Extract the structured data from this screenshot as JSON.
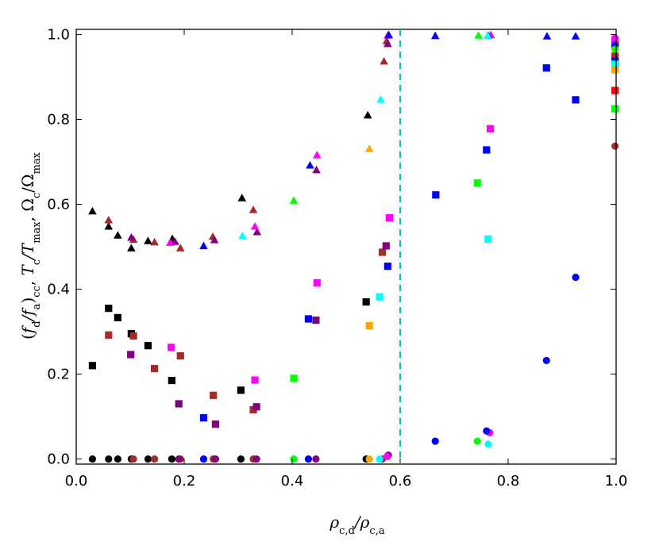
{
  "chart_data": {
    "type": "scatter",
    "title": "",
    "xlabel": "ρ_c,d/ρ_c,a",
    "ylabel": "(f_d/f_a)_cc,  T_c/T_max,  Ω_c/Ω_max",
    "xlim": [
      0.0,
      1.0
    ],
    "ylim": [
      0.0,
      1.0
    ],
    "xticks": [
      "0.0",
      "0.2",
      "0.4",
      "0.6",
      "0.8",
      "1.0"
    ],
    "yticks": [
      "0.0",
      "0.2",
      "0.4",
      "0.6",
      "0.8",
      "1.0"
    ],
    "vline": {
      "x": 0.6,
      "color": "#00bcbc",
      "style": "dashed"
    },
    "marker_meaning": {
      "circle": "(f_d/f_a)_cc",
      "square": "T_c/T_max",
      "triangle": "Ω_c/Ω_max"
    },
    "series": [
      {
        "name": "black",
        "color": "#000000",
        "marker": "triangle",
        "points": [
          [
            0.03,
            0.584
          ],
          [
            0.06,
            0.548
          ],
          [
            0.077,
            0.527
          ],
          [
            0.102,
            0.497
          ],
          [
            0.133,
            0.514
          ],
          [
            0.178,
            0.519
          ],
          [
            0.307,
            0.615
          ],
          [
            0.54,
            0.81
          ]
        ]
      },
      {
        "name": "brown",
        "color": "#a52a2a",
        "marker": "triangle",
        "points": [
          [
            0.06,
            0.563
          ],
          [
            0.106,
            0.517
          ],
          [
            0.145,
            0.511
          ],
          [
            0.193,
            0.497
          ],
          [
            0.253,
            0.524
          ],
          [
            0.328,
            0.587
          ],
          [
            0.57,
            0.937
          ],
          [
            0.575,
            0.985
          ]
        ]
      },
      {
        "name": "purple",
        "color": "#800080",
        "marker": "triangle",
        "points": [
          [
            0.102,
            0.522
          ],
          [
            0.183,
            0.512
          ],
          [
            0.256,
            0.516
          ],
          [
            0.335,
            0.535
          ],
          [
            0.445,
            0.681
          ],
          [
            0.577,
            0.978
          ]
        ]
      },
      {
        "name": "magenta",
        "color": "#ff00ff",
        "marker": "triangle",
        "points": [
          [
            0.174,
            0.51
          ],
          [
            0.331,
            0.548
          ],
          [
            0.446,
            0.716
          ],
          [
            0.577,
            0.998
          ],
          [
            0.768,
            0.999
          ]
        ]
      },
      {
        "name": "blue",
        "color": "#0000ff",
        "marker": "triangle",
        "points": [
          [
            0.236,
            0.502
          ],
          [
            0.433,
            0.692
          ],
          [
            0.579,
            0.999
          ],
          [
            0.665,
            0.997
          ],
          [
            0.763,
            0.998
          ],
          [
            0.872,
            0.996
          ],
          [
            0.925,
            0.996
          ]
        ]
      },
      {
        "name": "cyan",
        "color": "#00ffff",
        "marker": "triangle",
        "points": [
          [
            0.308,
            0.526
          ],
          [
            0.564,
            0.847
          ],
          [
            0.762,
            0.998
          ]
        ]
      },
      {
        "name": "green",
        "color": "#00ff00",
        "marker": "triangle",
        "points": [
          [
            0.403,
            0.609
          ],
          [
            0.745,
            0.998
          ]
        ]
      },
      {
        "name": "orange",
        "color": "#ffa500",
        "marker": "triangle",
        "points": [
          [
            0.543,
            0.731
          ]
        ]
      },
      {
        "name": "black",
        "color": "#000000",
        "marker": "square",
        "points": [
          [
            0.03,
            0.22
          ],
          [
            0.06,
            0.355
          ],
          [
            0.077,
            0.333
          ],
          [
            0.102,
            0.295
          ],
          [
            0.133,
            0.267
          ],
          [
            0.177,
            0.185
          ],
          [
            0.305,
            0.162
          ],
          [
            0.537,
            0.37
          ]
        ]
      },
      {
        "name": "brown",
        "color": "#a52a2a",
        "marker": "square",
        "points": [
          [
            0.06,
            0.292
          ],
          [
            0.106,
            0.29
          ],
          [
            0.145,
            0.213
          ],
          [
            0.193,
            0.243
          ],
          [
            0.254,
            0.15
          ],
          [
            0.328,
            0.116
          ],
          [
            0.567,
            0.487
          ],
          [
            0.998,
            0.949
          ]
        ]
      },
      {
        "name": "purple",
        "color": "#800080",
        "marker": "square",
        "points": [
          [
            0.101,
            0.246
          ],
          [
            0.19,
            0.13
          ],
          [
            0.258,
            0.082
          ],
          [
            0.334,
            0.123
          ],
          [
            0.444,
            0.327
          ],
          [
            0.574,
            0.502
          ],
          [
            0.998,
            0.978
          ]
        ]
      },
      {
        "name": "magenta",
        "color": "#ff00ff",
        "marker": "square",
        "points": [
          [
            0.176,
            0.263
          ],
          [
            0.331,
            0.186
          ],
          [
            0.446,
            0.415
          ],
          [
            0.58,
            0.568
          ],
          [
            0.767,
            0.778
          ],
          [
            0.998,
            0.987
          ]
        ]
      },
      {
        "name": "blue",
        "color": "#0000ff",
        "marker": "square",
        "points": [
          [
            0.236,
            0.097
          ],
          [
            0.43,
            0.33
          ],
          [
            0.577,
            0.454
          ],
          [
            0.666,
            0.622
          ],
          [
            0.76,
            0.728
          ],
          [
            0.871,
            0.921
          ],
          [
            0.925,
            0.846
          ],
          [
            0.998,
            0.937
          ]
        ]
      },
      {
        "name": "cyan",
        "color": "#00ffff",
        "marker": "square",
        "points": [
          [
            0.562,
            0.382
          ],
          [
            0.763,
            0.518
          ],
          [
            0.998,
            0.93
          ]
        ]
      },
      {
        "name": "green",
        "color": "#00ff00",
        "marker": "square",
        "points": [
          [
            0.403,
            0.19
          ],
          [
            0.743,
            0.65
          ],
          [
            0.998,
            0.825
          ]
        ]
      },
      {
        "name": "orange",
        "color": "#ffa500",
        "marker": "square",
        "points": [
          [
            0.543,
            0.314
          ],
          [
            0.998,
            0.917
          ]
        ]
      },
      {
        "name": "red",
        "color": "#ff0000",
        "marker": "square",
        "points": [
          [
            0.998,
            0.868
          ]
        ]
      },
      {
        "name": "black",
        "color": "#000000",
        "marker": "circle",
        "points": [
          [
            0.03,
            0.0
          ],
          [
            0.06,
            0.0
          ],
          [
            0.077,
            0.0
          ],
          [
            0.102,
            0.0
          ],
          [
            0.133,
            0.0
          ],
          [
            0.177,
            0.0
          ],
          [
            0.305,
            0.0
          ],
          [
            0.537,
            0.0
          ]
        ]
      },
      {
        "name": "brown",
        "color": "#a52a2a",
        "marker": "circle",
        "points": [
          [
            0.106,
            0.0
          ],
          [
            0.145,
            0.0
          ],
          [
            0.193,
            0.0
          ],
          [
            0.254,
            0.0
          ],
          [
            0.328,
            0.0
          ],
          [
            0.567,
            0.0
          ],
          [
            0.998,
            0.737
          ]
        ]
      },
      {
        "name": "purple",
        "color": "#800080",
        "marker": "circle",
        "points": [
          [
            0.19,
            0.0
          ],
          [
            0.258,
            0.0
          ],
          [
            0.334,
            0.0
          ],
          [
            0.444,
            0.0
          ],
          [
            0.578,
            0.009
          ]
        ]
      },
      {
        "name": "magenta",
        "color": "#ff00ff",
        "marker": "circle",
        "points": [
          [
            0.576,
            0.006
          ],
          [
            0.766,
            0.062
          ],
          [
            0.998,
            0.992
          ]
        ]
      },
      {
        "name": "blue",
        "color": "#0000ff",
        "marker": "circle",
        "points": [
          [
            0.236,
            0.0
          ],
          [
            0.43,
            0.0
          ],
          [
            0.665,
            0.042
          ],
          [
            0.76,
            0.066
          ],
          [
            0.871,
            0.232
          ],
          [
            0.925,
            0.428
          ],
          [
            0.998,
            0.975
          ]
        ]
      },
      {
        "name": "cyan",
        "color": "#00ffff",
        "marker": "circle",
        "points": [
          [
            0.562,
            0.0
          ],
          [
            0.763,
            0.035
          ]
        ]
      },
      {
        "name": "green",
        "color": "#00ff00",
        "marker": "circle",
        "points": [
          [
            0.403,
            0.0
          ],
          [
            0.743,
            0.042
          ],
          [
            0.998,
            0.965
          ]
        ]
      },
      {
        "name": "orange",
        "color": "#ffa500",
        "marker": "circle",
        "points": [
          [
            0.543,
            0.0
          ]
        ]
      }
    ]
  }
}
